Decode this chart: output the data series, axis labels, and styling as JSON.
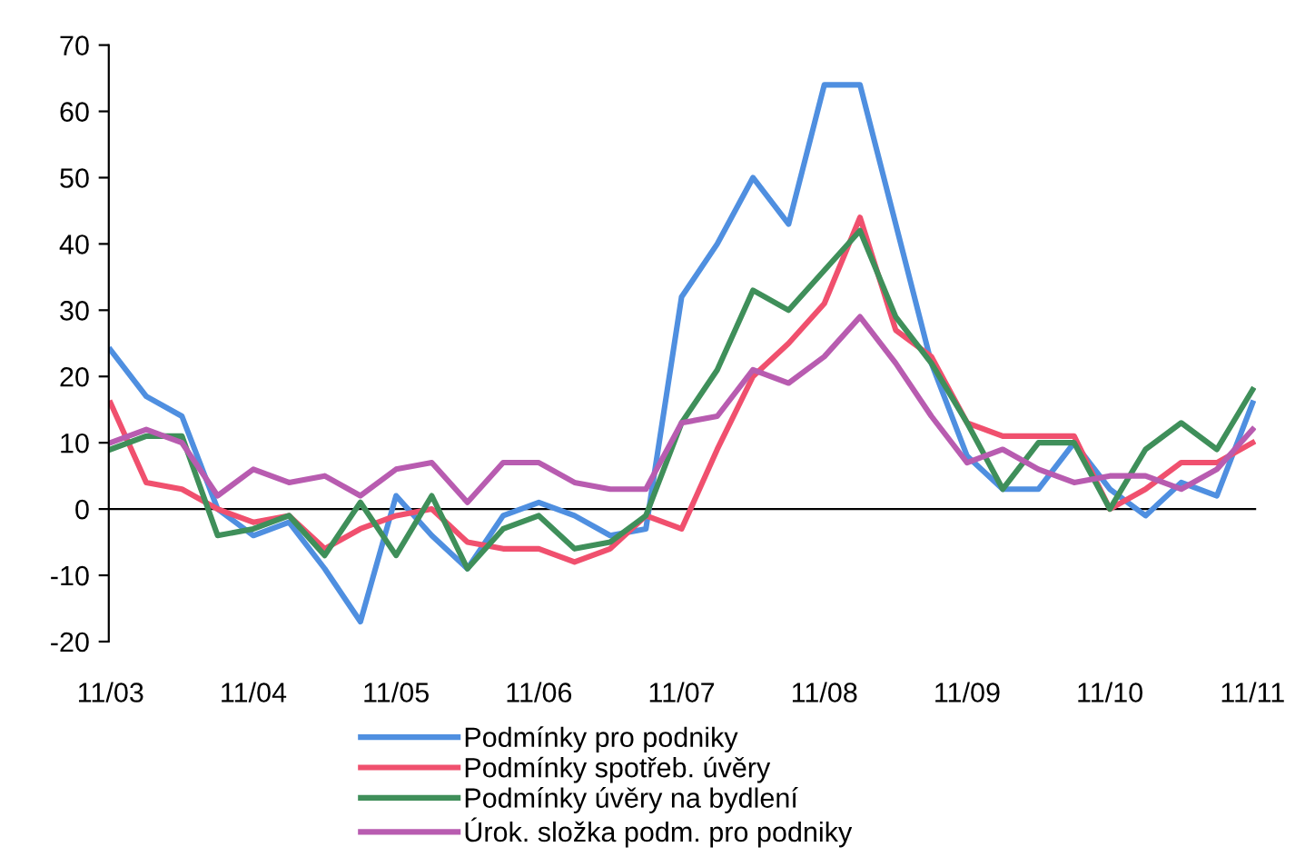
{
  "chart_data": {
    "type": "line",
    "categories": [
      "11/03",
      null,
      null,
      null,
      "11/04",
      null,
      null,
      null,
      "11/05",
      null,
      null,
      null,
      "11/06",
      null,
      null,
      null,
      "11/07",
      null,
      null,
      null,
      "11/08",
      null,
      null,
      null,
      "11/09",
      null,
      null,
      null,
      "11/10",
      null,
      null,
      null,
      "11/11"
    ],
    "series": [
      {
        "name": "Podmínky pro podniky",
        "color": "#4f8fe0",
        "values": [
          24,
          17,
          14,
          0,
          -4,
          -2,
          -9,
          -17,
          2,
          -4,
          -9,
          -1,
          1,
          -1,
          -4,
          -3,
          32,
          40,
          50,
          43,
          64,
          64,
          43,
          22,
          8,
          3,
          3,
          10,
          3,
          -1,
          4,
          2,
          16
        ]
      },
      {
        "name": "Podmínky spotřeb. úvěry",
        "color": "#f0506e",
        "values": [
          16,
          4,
          3,
          0,
          -2,
          -1,
          -6,
          -3,
          -1,
          0,
          -5,
          -6,
          -6,
          -8,
          -6,
          -1,
          -3,
          9,
          20,
          25,
          31,
          44,
          27,
          23,
          13,
          11,
          11,
          11,
          0,
          3,
          7,
          7,
          10
        ]
      },
      {
        "name": "Podmínky úvěry na bydlení",
        "color": "#3f8f5a",
        "values": [
          9,
          11,
          11,
          -4,
          -3,
          -1,
          -7,
          1,
          -7,
          2,
          -9,
          -3,
          -1,
          -6,
          -5,
          -1,
          13,
          21,
          33,
          30,
          36,
          42,
          29,
          22,
          13,
          3,
          10,
          10,
          0,
          9,
          13,
          9,
          18
        ]
      },
      {
        "name": "Úrok. složka podm. pro podniky",
        "color": "#b85cb0",
        "values": [
          10,
          12,
          10,
          2,
          6,
          4,
          5,
          2,
          6,
          7,
          1,
          7,
          7,
          4,
          3,
          3,
          13,
          14,
          21,
          19,
          23,
          29,
          22,
          14,
          7,
          9,
          6,
          4,
          5,
          5,
          3,
          6,
          12
        ]
      }
    ],
    "ylim": [
      -20,
      70
    ],
    "yticks": [
      -20,
      -10,
      0,
      10,
      20,
      30,
      40,
      50,
      60,
      70
    ],
    "ref_lines": [
      {
        "axis": "y",
        "value": 0,
        "color": "#000000"
      }
    ],
    "grid": false,
    "legend": "bottom",
    "line_style": "solid",
    "marker": "none"
  }
}
